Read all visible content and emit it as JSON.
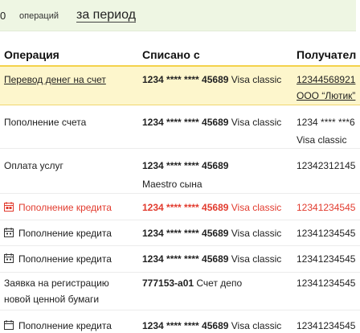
{
  "filter": {
    "count": "0",
    "count_label": "операций",
    "period_link": "за период"
  },
  "columns": {
    "operation": "Операция",
    "charged_from": "Списано с",
    "recipient": "Получател"
  },
  "rows": [
    {
      "operation": "Перевод денег на счет",
      "card_number": "1234 **** **** 45689",
      "card_type": " Visa classic",
      "recipient_line1": "12344568921",
      "recipient_line2": "ООО “Лютик”"
    },
    {
      "operation": "Пополнение счета",
      "card_number": "1234 **** **** 45689",
      "card_type": " Visa classic",
      "recipient_line1": "1234 **** ***6",
      "recipient_line2": "Visa classic"
    },
    {
      "operation": "Оплата услуг",
      "card_number": "1234 **** **** 45689",
      "card_type_line2": "Maestro сына",
      "recipient_line1": "12342312145"
    },
    {
      "operation": "Пополнение кредита",
      "card_number": "1234 **** **** 45689",
      "card_type": " Visa classic",
      "recipient_line1": "12341234545"
    },
    {
      "operation": "Пополнение кредита",
      "card_number": "1234 **** **** 45689",
      "card_type": " Visa classic",
      "recipient_line1": "12341234545"
    },
    {
      "operation": "Пополнение кредита",
      "card_number": "1234 **** **** 45689",
      "card_type": " Visa classic",
      "recipient_line1": "12341234545"
    },
    {
      "operation_line1": "Заявка на регистрацию",
      "operation_line2": "новой ценной бумаги",
      "account_number": "777153-а01",
      "account_type": " Счет депо",
      "recipient_line1": "12341234545"
    },
    {
      "operation": "Пополнение кредита",
      "card_number": "1234 **** **** 45689",
      "card_type": " Visa classic",
      "recipient_line1": "12341234545"
    }
  ],
  "colors": {
    "accent_yellow": "#f4d24b",
    "highlight_bg": "#fdf6cc",
    "credit_red": "#e23b2e",
    "topbar_bg": "#eef6e3"
  },
  "icons": {
    "credit_row": "calendar-icon"
  }
}
